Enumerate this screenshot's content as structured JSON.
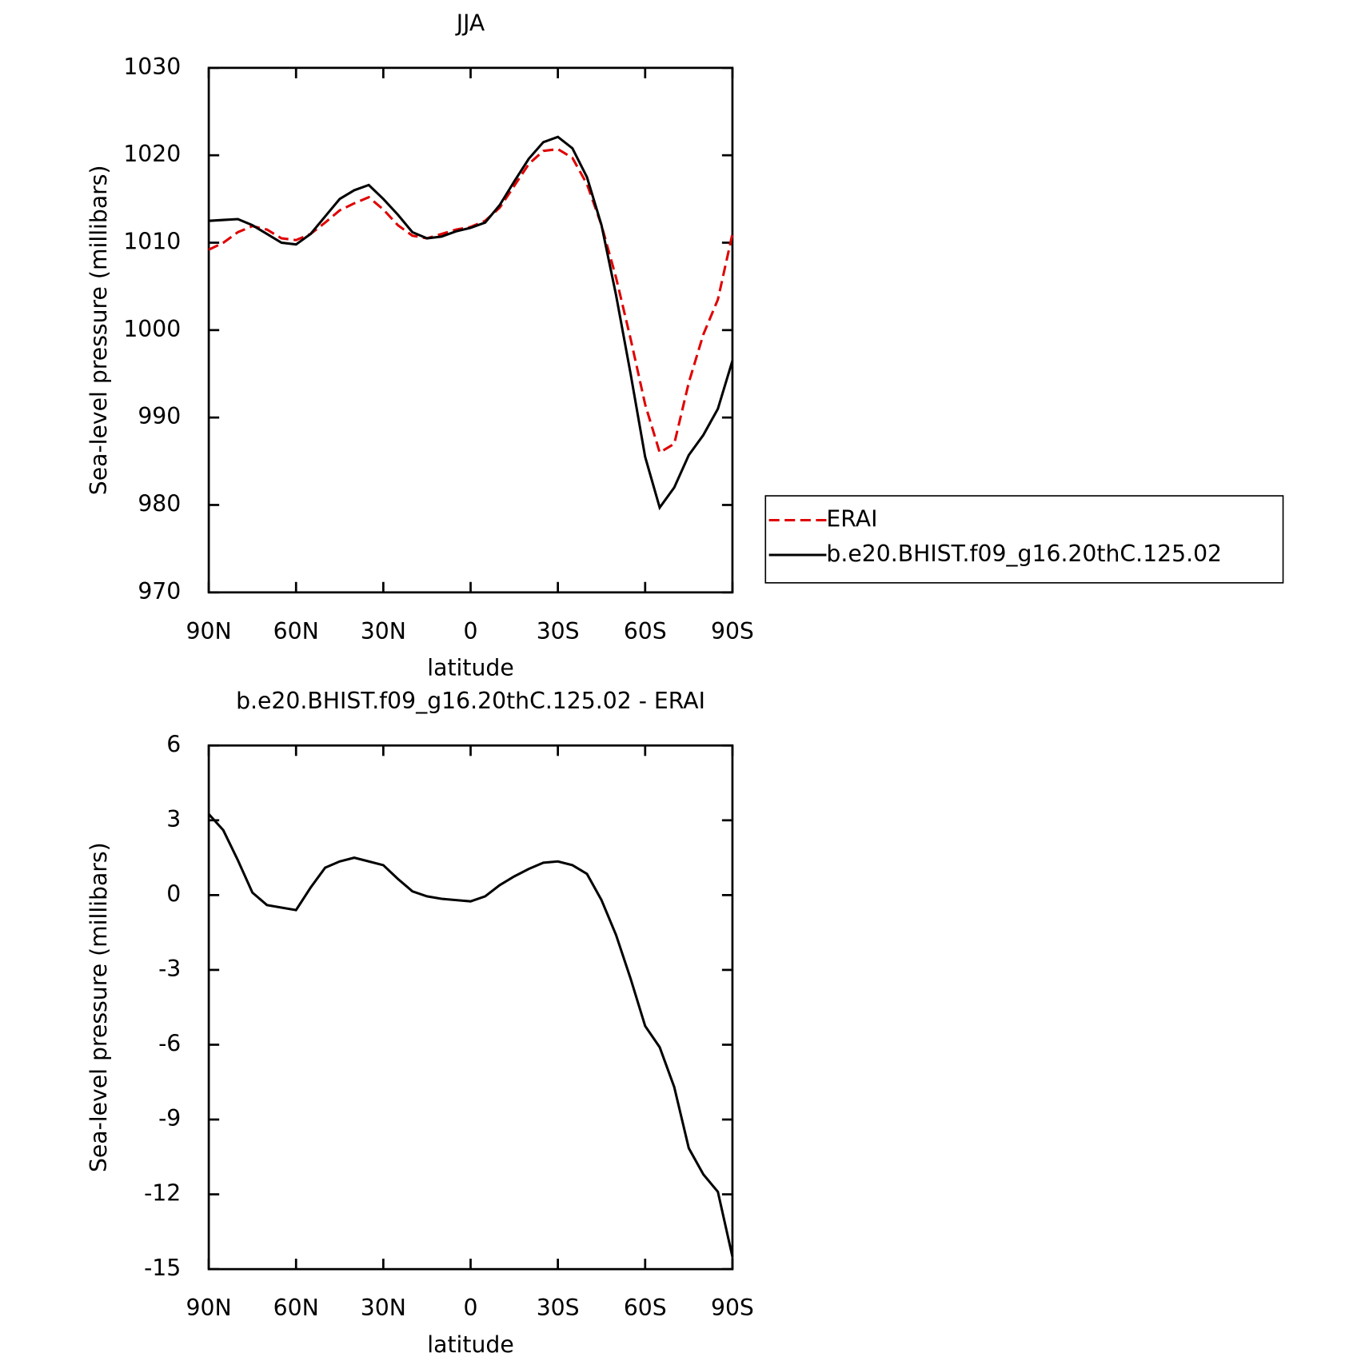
{
  "chart_data": [
    {
      "type": "line",
      "title": "JJA",
      "xlabel": "latitude",
      "ylabel": "Sea-level pressure (millibars)",
      "x": [
        90,
        85,
        80,
        75,
        70,
        65,
        60,
        55,
        50,
        45,
        40,
        35,
        30,
        25,
        20,
        15,
        10,
        5,
        0,
        -5,
        -10,
        -15,
        -20,
        -25,
        -30,
        -35,
        -40,
        -45,
        -50,
        -55,
        -60,
        -65,
        -70,
        -75,
        -80,
        -85,
        -90
      ],
      "series": [
        {
          "name": "ERAI",
          "color": "#e00000",
          "linestyle": "dashed",
          "values": [
            1009.2,
            1010.0,
            1011.2,
            1011.9,
            1011.5,
            1010.5,
            1010.3,
            1011.0,
            1012.3,
            1013.7,
            1014.5,
            1015.2,
            1013.8,
            1012.0,
            1010.8,
            1010.5,
            1011.0,
            1011.5,
            1011.8,
            1012.5,
            1014.0,
            1016.5,
            1019.0,
            1020.5,
            1020.7,
            1019.7,
            1016.7,
            1012.0,
            1006.0,
            999.0,
            991.5,
            986.0,
            987.0,
            994.0,
            999.5,
            1003.5,
            1011.0
          ]
        },
        {
          "name": "b.e20.BHIST.f09_g16.20thC.125.02",
          "color": "#000000",
          "linestyle": "solid",
          "values": [
            1012.5,
            1012.6,
            1012.7,
            1012.0,
            1011.0,
            1010.0,
            1009.8,
            1011.0,
            1013.0,
            1015.0,
            1016.0,
            1016.6,
            1015.0,
            1013.2,
            1011.2,
            1010.5,
            1010.7,
            1011.3,
            1011.7,
            1012.3,
            1014.3,
            1017.0,
            1019.6,
            1021.5,
            1022.1,
            1020.8,
            1017.5,
            1012.0,
            1004.0,
            995.0,
            985.5,
            979.7,
            982.0,
            985.7,
            988.0,
            991.0,
            996.5
          ]
        }
      ],
      "xlim": [
        90,
        -90
      ],
      "xticks": [
        {
          "value": 90,
          "label": "90N"
        },
        {
          "value": 60,
          "label": "60N"
        },
        {
          "value": 30,
          "label": "30N"
        },
        0,
        {
          "value": -30,
          "label": "30S"
        },
        {
          "value": -60,
          "label": "60S"
        },
        {
          "value": -90,
          "label": "90S"
        }
      ],
      "ylim": [
        970,
        1030
      ],
      "yticks": [
        970,
        980,
        990,
        1000,
        1010,
        1020,
        1030
      ],
      "legend": "outside-right"
    },
    {
      "type": "line",
      "title": "b.e20.BHIST.f09_g16.20thC.125.02 - ERAI",
      "xlabel": "latitude",
      "ylabel": "Sea-level pressure (millibars)",
      "x": [
        90,
        85,
        80,
        75,
        70,
        65,
        60,
        55,
        50,
        45,
        40,
        35,
        30,
        25,
        20,
        15,
        10,
        5,
        0,
        -5,
        -10,
        -15,
        -20,
        -25,
        -30,
        -35,
        -40,
        -45,
        -50,
        -55,
        -60,
        -65,
        -70,
        -75,
        -80,
        -85,
        -90
      ],
      "series": [
        {
          "color": "#000000",
          "linestyle": "solid",
          "values": [
            3.25,
            2.6,
            1.4,
            0.1,
            -0.4,
            -0.5,
            -0.6,
            0.3,
            1.1,
            1.35,
            1.5,
            1.35,
            1.2,
            0.65,
            0.15,
            -0.05,
            -0.15,
            -0.2,
            -0.25,
            -0.05,
            0.4,
            0.75,
            1.05,
            1.3,
            1.35,
            1.2,
            0.85,
            -0.2,
            -1.6,
            -3.35,
            -5.25,
            -6.1,
            -7.7,
            -10.15,
            -11.2,
            -11.9,
            -14.5
          ]
        }
      ],
      "xlim": [
        90,
        -90
      ],
      "xticks": [
        {
          "value": 90,
          "label": "90N"
        },
        {
          "value": 60,
          "label": "60N"
        },
        {
          "value": 30,
          "label": "30N"
        },
        0,
        {
          "value": -30,
          "label": "30S"
        },
        {
          "value": -60,
          "label": "60S"
        },
        {
          "value": -90,
          "label": "90S"
        }
      ],
      "ylim": [
        -15,
        6
      ],
      "yticks": [
        -15,
        -12,
        -9,
        -6,
        -3,
        0,
        3,
        6
      ]
    }
  ]
}
